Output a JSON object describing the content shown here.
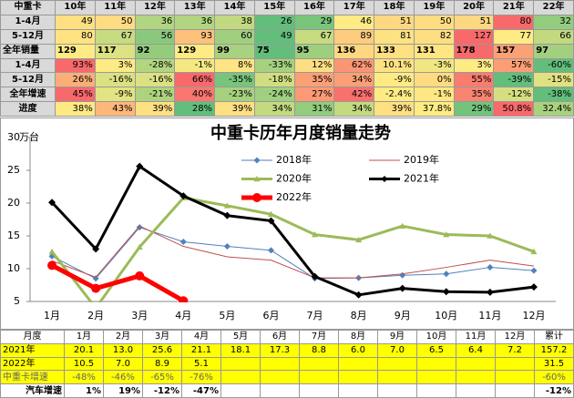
{
  "top_table": {
    "header": [
      "中重卡",
      "10年",
      "11年",
      "12年",
      "13年",
      "14年",
      "15年",
      "16年",
      "17年",
      "18年",
      "19年",
      "20年",
      "21年",
      "22年"
    ],
    "rows": [
      [
        "1-4月",
        "49",
        "50",
        "36",
        "36",
        "38",
        "26",
        "29",
        "46",
        "51",
        "50",
        "51",
        "80",
        "32"
      ],
      [
        "5-12月",
        "80",
        "67",
        "56",
        "93",
        "60",
        "49",
        "67",
        "89",
        "81",
        "82",
        "127",
        "77",
        "66"
      ],
      [
        "全年销量",
        "129",
        "117",
        "92",
        "129",
        "99",
        "75",
        "95",
        "136",
        "133",
        "131",
        "178",
        "157",
        "97"
      ],
      [
        "1-4月",
        "93%",
        "3%",
        "-28%",
        "-1%",
        "8%",
        "-33%",
        "12%",
        "62%",
        "10.1%",
        "-3%",
        "3%",
        "57%",
        "-60%"
      ],
      [
        "5-12月",
        "26%",
        "-16%",
        "-16%",
        "66%",
        "-35%",
        "-18%",
        "35%",
        "34%",
        "-9%",
        "0%",
        "55%",
        "-39%",
        "-15%"
      ],
      [
        "全年增速",
        "45%",
        "-9%",
        "-21%",
        "40%",
        "-23%",
        "-24%",
        "27%",
        "42%",
        "-2.4%",
        "-1%",
        "35%",
        "-12%",
        "-38%"
      ],
      [
        "进度",
        "38%",
        "43%",
        "39%",
        "28%",
        "39%",
        "34%",
        "31%",
        "34%",
        "39%",
        "37.8%",
        "29%",
        "50.8%",
        "32.4%"
      ]
    ]
  },
  "chart_data": {
    "type": "line",
    "title": "中重卡历年月度销量走势",
    "y_label": "万台",
    "categories": [
      "1月",
      "2月",
      "3月",
      "4月",
      "5月",
      "6月",
      "7月",
      "8月",
      "9月",
      "10月",
      "11月",
      "12月"
    ],
    "ylim": [
      5,
      30
    ],
    "yticks": [
      5,
      10,
      15,
      20,
      25,
      30
    ],
    "series": [
      {
        "name": "2018年",
        "color": "#4f81bd",
        "marker": "diamond",
        "width": 1,
        "values": [
          11.9,
          8.5,
          16.3,
          14.1,
          13.4,
          12.8,
          8.5,
          8.6,
          9.0,
          9.2,
          10.2,
          9.7
        ]
      },
      {
        "name": "2019年",
        "color": "#c0504d",
        "marker": "none",
        "width": 1,
        "values": [
          11.2,
          8.7,
          16.5,
          13.4,
          11.8,
          11.3,
          8.6,
          8.6,
          9.2,
          10.2,
          11.3,
          10.4
        ]
      },
      {
        "name": "2020年",
        "color": "#9bbb59",
        "marker": "triangle",
        "width": 3,
        "values": [
          12.6,
          4.0,
          13.3,
          20.8,
          19.6,
          18.3,
          15.2,
          14.4,
          16.5,
          15.2,
          15.0,
          12.6
        ]
      },
      {
        "name": "2021年",
        "color": "#000000",
        "marker": "diamond",
        "width": 3,
        "values": [
          20.1,
          13.0,
          25.6,
          21.1,
          18.1,
          17.3,
          8.8,
          6.0,
          7.0,
          6.5,
          6.4,
          7.2
        ]
      },
      {
        "name": "2022年",
        "color": "#ff0000",
        "marker": "circle",
        "width": 5,
        "values": [
          10.5,
          7.0,
          8.9,
          5.1,
          null,
          null,
          null,
          null,
          null,
          null,
          null,
          null
        ]
      }
    ]
  },
  "bottom_table": {
    "header": [
      "月度",
      "1月",
      "2月",
      "3月",
      "4月",
      "5月",
      "6月",
      "7月",
      "8月",
      "9月",
      "10月",
      "11月",
      "12月",
      "累计"
    ],
    "rows": [
      [
        "2021年",
        "20.1",
        "13.0",
        "25.6",
        "21.1",
        "18.1",
        "17.3",
        "8.8",
        "6.0",
        "7.0",
        "6.5",
        "6.4",
        "7.2",
        "157.2"
      ],
      [
        "2022年",
        "10.5",
        "7.0",
        "8.9",
        "5.1",
        null,
        null,
        null,
        null,
        null,
        null,
        null,
        null,
        "31.5"
      ],
      [
        "中重卡增速",
        "-48%",
        "-46%",
        "-65%",
        "-76%",
        null,
        null,
        null,
        null,
        null,
        null,
        null,
        null,
        "-60%"
      ],
      [
        "汽车增速",
        "1%",
        "19%",
        "-12%",
        "-47%",
        null,
        null,
        null,
        null,
        null,
        null,
        null,
        null,
        "-12%"
      ]
    ]
  }
}
